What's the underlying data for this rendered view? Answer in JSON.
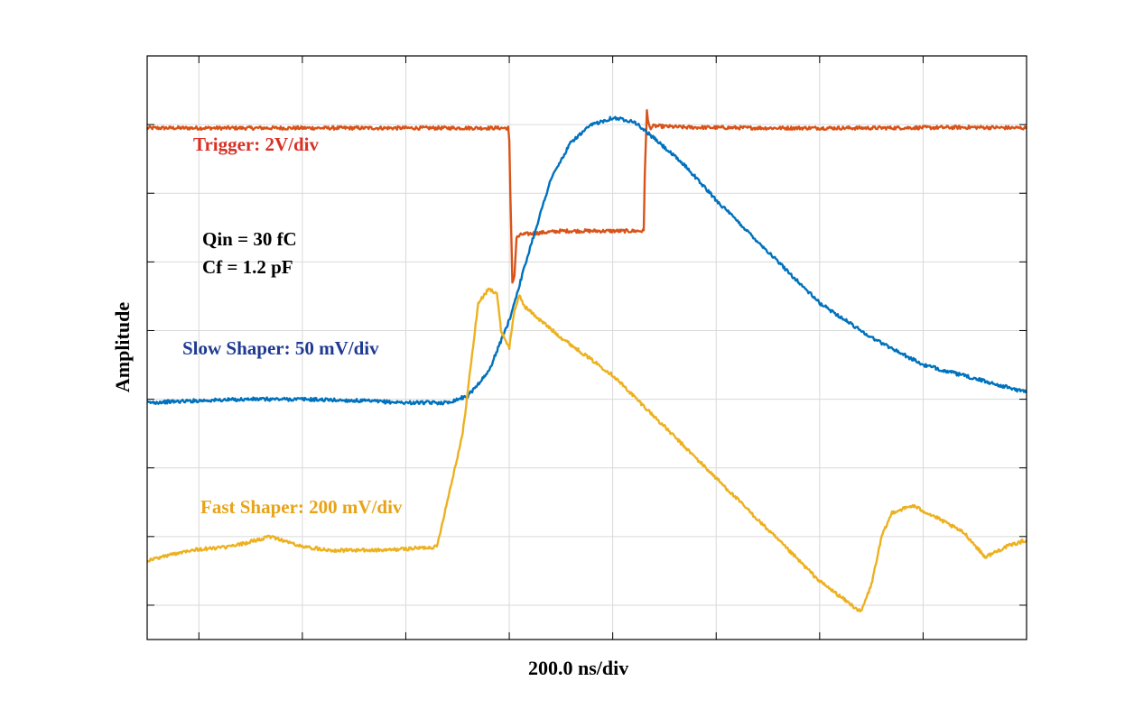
{
  "chart_data": {
    "type": "line",
    "xlabel": "200.0 ns/div",
    "ylabel": "Amplitude",
    "grid": true,
    "xlim": [
      0,
      8.5
    ],
    "ylim": [
      0,
      8.5
    ],
    "annotations": [
      {
        "text": "Trigger: 2V/div",
        "color": "#d93025"
      },
      {
        "text": "Qin = 30 fC",
        "color": "#000000"
      },
      {
        "text": "Cf = 1.2 pF",
        "color": "#000000"
      },
      {
        "text": "Slow Shaper: 50 mV/div",
        "color": "#1f3a93"
      },
      {
        "text": "Fast Shaper: 200 mV/div",
        "color": "#e8a317"
      }
    ],
    "series": [
      {
        "color": "#d95319",
        "x": [
          0,
          3.49,
          3.5,
          3.51,
          3.53,
          3.55,
          3.57,
          3.62,
          4.0,
          4.5,
          4.8,
          4.81,
          4.83,
          4.84,
          4.86,
          4.9,
          5.2,
          6.0,
          7.0,
          8.0,
          8.5
        ],
        "y": [
          7.45,
          7.45,
          7.25,
          6.5,
          5.2,
          5.3,
          5.85,
          5.9,
          5.95,
          5.95,
          5.95,
          6.8,
          7.7,
          7.55,
          7.45,
          7.48,
          7.46,
          7.45,
          7.45,
          7.46,
          7.45
        ]
      },
      {
        "color": "#0072bd",
        "x": [
          0,
          0.5,
          1.0,
          1.5,
          2.0,
          2.5,
          2.9,
          3.1,
          3.3,
          3.5,
          3.7,
          3.9,
          4.1,
          4.3,
          4.5,
          4.7,
          4.9,
          5.2,
          5.5,
          6.0,
          6.5,
          7.0,
          7.5,
          8.0,
          8.5
        ],
        "y": [
          3.45,
          3.48,
          3.5,
          3.5,
          3.48,
          3.45,
          3.45,
          3.55,
          3.9,
          4.65,
          5.7,
          6.7,
          7.25,
          7.5,
          7.6,
          7.55,
          7.3,
          6.9,
          6.4,
          5.65,
          4.9,
          4.4,
          4.0,
          3.8,
          3.6
        ]
      },
      {
        "color": "#edb120",
        "x": [
          0,
          0.4,
          0.8,
          1.2,
          1.5,
          1.8,
          2.3,
          2.8,
          3.05,
          3.2,
          3.3,
          3.38,
          3.42,
          3.5,
          3.55,
          3.6,
          3.65,
          3.8,
          4.0,
          4.5,
          5.0,
          5.5,
          6.0,
          6.5,
          6.9,
          7.0,
          7.1,
          7.2,
          7.4,
          7.6,
          7.9,
          8.1,
          8.3,
          8.5
        ],
        "y": [
          1.15,
          1.3,
          1.35,
          1.5,
          1.35,
          1.3,
          1.3,
          1.35,
          3.0,
          4.9,
          5.1,
          5.05,
          4.5,
          4.25,
          4.8,
          5.0,
          4.85,
          4.65,
          4.4,
          3.85,
          3.1,
          2.35,
          1.6,
          0.85,
          0.4,
          0.8,
          1.5,
          1.85,
          1.95,
          1.8,
          1.55,
          1.2,
          1.35,
          1.45
        ]
      }
    ]
  }
}
